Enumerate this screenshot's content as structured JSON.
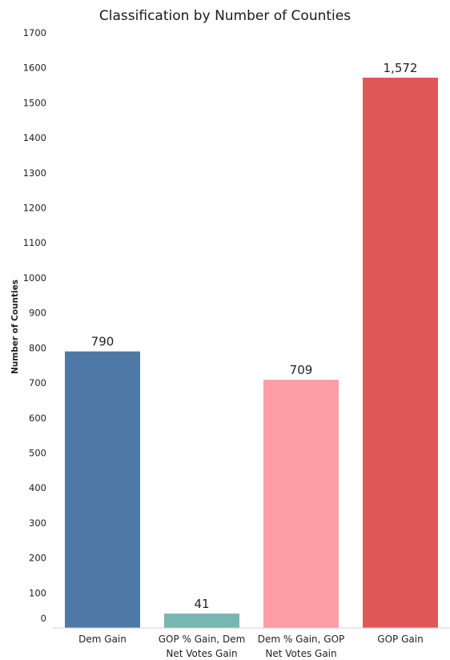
{
  "chart_data": {
    "type": "bar",
    "title": "Classification by Number of Counties",
    "xlabel": "",
    "ylabel": "Number of Counties",
    "ylim": [
      0,
      1700
    ],
    "yticks": [
      0,
      100,
      200,
      300,
      400,
      500,
      600,
      700,
      800,
      900,
      1000,
      1100,
      1200,
      1300,
      1400,
      1500,
      1600,
      1700
    ],
    "grid": false,
    "legend": "none",
    "categories": [
      [
        "Dem Gain"
      ],
      [
        "GOP % Gain, Dem",
        "Net Votes Gain"
      ],
      [
        "Dem % Gain, GOP",
        "Net Votes Gain"
      ],
      [
        "GOP Gain"
      ]
    ],
    "values": [
      790,
      41,
      709,
      1572
    ],
    "value_labels": [
      "790",
      "41",
      "709",
      "1,572"
    ],
    "colors": [
      "#4e79a7",
      "#76b7b2",
      "#ff9da7",
      "#e15759"
    ]
  }
}
